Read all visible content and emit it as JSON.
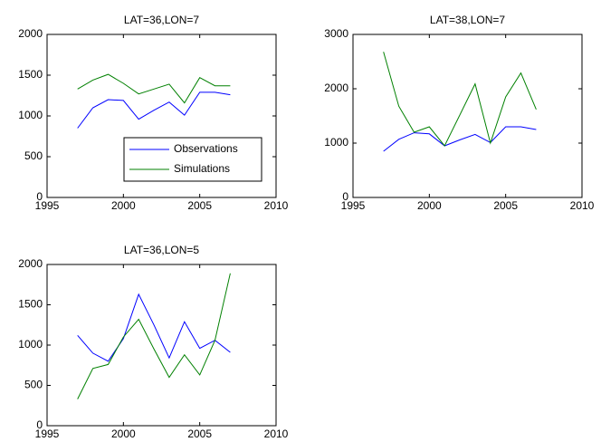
{
  "chart_data": [
    {
      "type": "line",
      "title": "LAT=36,LON=7",
      "x": [
        1997,
        1998,
        1999,
        2000,
        2001,
        2002,
        2003,
        2004,
        2005,
        2006,
        2007
      ],
      "series": [
        {
          "name": "Observations",
          "color": "#0000ff",
          "values": [
            850,
            1100,
            1200,
            1190,
            960,
            1070,
            1170,
            1010,
            1290,
            1290,
            1260
          ]
        },
        {
          "name": "Simulations",
          "color": "#008000",
          "values": [
            1330,
            1440,
            1510,
            1400,
            1270,
            1330,
            1390,
            1160,
            1470,
            1370,
            1370
          ]
        }
      ],
      "xlim": [
        1995,
        2010
      ],
      "xticks": [
        1995,
        2000,
        2005,
        2010
      ],
      "ylim": [
        0,
        2000
      ],
      "yticks": [
        0,
        500,
        1000,
        1500,
        2000
      ],
      "legend": "lower right",
      "grid": false
    },
    {
      "type": "line",
      "title": "LAT=38,LON=7",
      "x": [
        1997,
        1998,
        1999,
        2000,
        2001,
        2002,
        2003,
        2004,
        2005,
        2006,
        2007
      ],
      "series": [
        {
          "color": "#0000ff",
          "values": [
            850,
            1070,
            1190,
            1170,
            950,
            1060,
            1160,
            1010,
            1300,
            1300,
            1250
          ]
        },
        {
          "color": "#008000",
          "values": [
            2680,
            1680,
            1200,
            1300,
            950,
            1520,
            2090,
            1000,
            1850,
            2290,
            1620
          ]
        }
      ],
      "xlim": [
        1995,
        2010
      ],
      "xticks": [
        1995,
        2000,
        2005,
        2010
      ],
      "ylim": [
        0,
        3000
      ],
      "yticks": [
        0,
        1000,
        2000,
        3000
      ],
      "grid": false
    },
    {
      "type": "line",
      "title": "LAT=36,LON=5",
      "x": [
        1997,
        1998,
        1999,
        2000,
        2001,
        2002,
        2003,
        2004,
        2005,
        2006,
        2007
      ],
      "series": [
        {
          "color": "#0000ff",
          "values": [
            1120,
            900,
            800,
            1080,
            1630,
            1250,
            840,
            1290,
            960,
            1060,
            910
          ]
        },
        {
          "color": "#008000",
          "values": [
            330,
            710,
            760,
            1100,
            1320,
            950,
            600,
            880,
            630,
            1060,
            1890
          ]
        }
      ],
      "xlim": [
        1995,
        2010
      ],
      "xticks": [
        1995,
        2000,
        2005,
        2010
      ],
      "ylim": [
        0,
        2000
      ],
      "yticks": [
        0,
        500,
        1000,
        1500,
        2000
      ],
      "grid": false
    }
  ]
}
